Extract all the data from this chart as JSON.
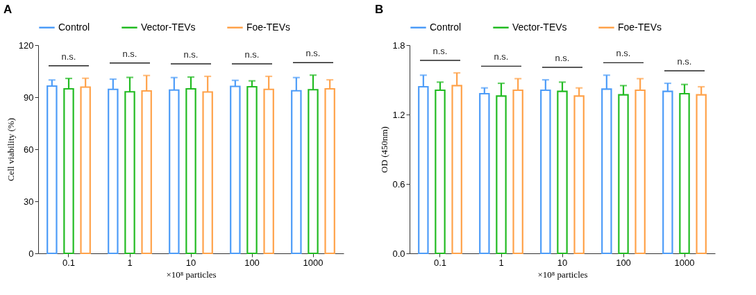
{
  "chart_data": [
    {
      "type": "bar",
      "title": "A",
      "xlabel": "×10⁸ particles",
      "ylabel": "Cell viability (%)",
      "categories": [
        "0.1",
        "1",
        "10",
        "100",
        "1000"
      ],
      "series": [
        {
          "name": "Control",
          "color": "#4d9cf8",
          "values": [
            96.4,
            94.5,
            94.1,
            96.2,
            93.7
          ],
          "errors": [
            3.5,
            5.9,
            7.2,
            3.5,
            7.6
          ]
        },
        {
          "name": "Vector-TEVs",
          "color": "#22bb22",
          "values": [
            94.8,
            93.1,
            94.8,
            96.0,
            94.3
          ],
          "errors": [
            6.0,
            8.3,
            6.8,
            3.4,
            8.4
          ]
        },
        {
          "name": "Foe-TEVs",
          "color": "#ffa24a",
          "values": [
            95.8,
            93.6,
            93.0,
            94.5,
            94.8
          ],
          "errors": [
            5.1,
            8.9,
            9.0,
            7.5,
            5.2
          ]
        }
      ],
      "ylim": [
        0,
        120
      ],
      "yticks": [
        0,
        30,
        60,
        90,
        120
      ],
      "grid": false,
      "legend": "top",
      "annotations": [
        "n.s.",
        "n.s.",
        "n.s.",
        "n.s.",
        "n.s."
      ]
    },
    {
      "type": "bar",
      "title": "B",
      "xlabel": "×10⁸ particles",
      "ylabel": "OD (450nm)",
      "categories": [
        "0.1",
        "1",
        "10",
        "100",
        "1000"
      ],
      "series": [
        {
          "name": "Control",
          "color": "#4d9cf8",
          "values": [
            1.44,
            1.38,
            1.41,
            1.42,
            1.4
          ],
          "errors": [
            0.1,
            0.05,
            0.09,
            0.12,
            0.07
          ]
        },
        {
          "name": "Vector-TEVs",
          "color": "#22bb22",
          "values": [
            1.41,
            1.36,
            1.4,
            1.37,
            1.38
          ],
          "errors": [
            0.07,
            0.11,
            0.08,
            0.08,
            0.08
          ]
        },
        {
          "name": "Foe-TEVs",
          "color": "#ffa24a",
          "values": [
            1.45,
            1.41,
            1.36,
            1.41,
            1.37
          ],
          "errors": [
            0.11,
            0.1,
            0.07,
            0.1,
            0.07
          ]
        }
      ],
      "ylim": [
        0,
        1.8
      ],
      "yticks": [
        {
          "value": 0,
          "label": "0.0"
        },
        0.6,
        1.2,
        1.8
      ],
      "grid": false,
      "legend": "top",
      "annotations": [
        "n.s.",
        "n.s.",
        "n.s.",
        "n.s.",
        "n.s."
      ]
    }
  ]
}
